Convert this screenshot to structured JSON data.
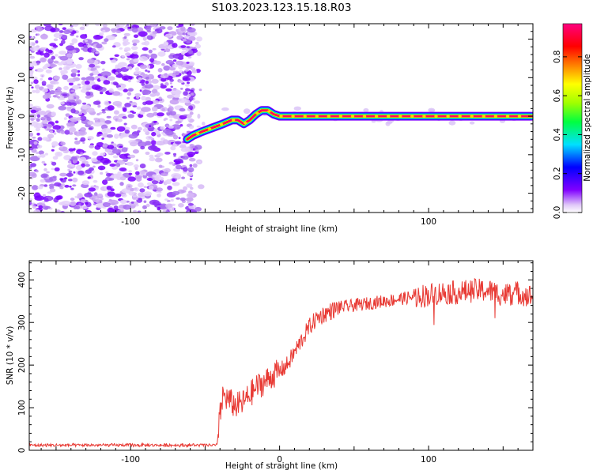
{
  "title": "S103.2023.123.15.18.R03",
  "chart_data": [
    {
      "type": "heatmap",
      "xlabel": "Height of straight line (km)",
      "ylabel": "Frequency (Hz)",
      "xlim": [
        -168,
        170
      ],
      "ylim": [
        -25,
        24
      ],
      "xticks": [
        -100,
        0,
        100
      ],
      "xticklabels": [
        "-100",
        "",
        "100"
      ],
      "yticks": [
        -20,
        -10,
        0,
        10,
        20
      ],
      "yticklabels": [
        "-20",
        "-10",
        "0",
        "10",
        "20"
      ],
      "colorbar": {
        "label": "Normalized spectral amplitude",
        "range": [
          0,
          0.97
        ],
        "ticks": [
          0.0,
          0.2,
          0.4,
          0.6,
          0.8
        ],
        "ticklabels": [
          "0.0",
          "0.2",
          "0.4",
          "0.6",
          "0.8"
        ],
        "colors": [
          "#ffffff",
          "#e0c8f8",
          "#8000ff",
          "#0000ff",
          "#00e0ff",
          "#00ff40",
          "#a0ff00",
          "#ffff00",
          "#ff8000",
          "#ff0000",
          "#ff0080"
        ]
      },
      "noise_region_x": [
        -168,
        -58
      ],
      "ridge": {
        "x": [
          -62,
          -58,
          -52,
          -45,
          -38,
          -32,
          -28,
          -24,
          -20,
          -16,
          -12,
          -8,
          -4,
          0,
          10,
          50,
          100,
          170
        ],
        "y": [
          -6,
          -5,
          -4,
          -3,
          -2,
          -1,
          -1,
          -2,
          -1,
          0.5,
          1.5,
          1.5,
          0.5,
          0,
          0,
          0,
          0,
          0
        ]
      }
    },
    {
      "type": "line",
      "xlabel": "Height of straight line (km)",
      "ylabel": "SNR (10 * v/v)",
      "xlim": [
        -168,
        170
      ],
      "ylim": [
        0,
        445
      ],
      "xticks": [
        -100,
        0,
        100
      ],
      "xticklabels": [
        "-100",
        "0",
        "100"
      ],
      "yticks": [
        0,
        100,
        200,
        300,
        400
      ],
      "yticklabels": [
        "0",
        "100",
        "200",
        "300",
        "400"
      ],
      "color": "#e83a34",
      "series": [
        {
          "x": [
            -168,
            -150,
            -130,
            -110,
            -90,
            -70,
            -50,
            -42,
            -40,
            -38,
            -35,
            -30,
            -25,
            -20,
            -15,
            -10,
            -5,
            0,
            5,
            10,
            15,
            20,
            25,
            30,
            40,
            50,
            60,
            70,
            80,
            90,
            100,
            110,
            120,
            130,
            140,
            150,
            160,
            170
          ],
          "y": [
            12,
            12,
            12,
            12,
            12,
            12,
            12,
            12,
            80,
            130,
            120,
            105,
            110,
            130,
            150,
            160,
            175,
            185,
            200,
            230,
            260,
            290,
            310,
            320,
            335,
            340,
            345,
            350,
            355,
            360,
            365,
            370,
            370,
            375,
            375,
            365,
            370,
            360
          ]
        }
      ]
    }
  ]
}
